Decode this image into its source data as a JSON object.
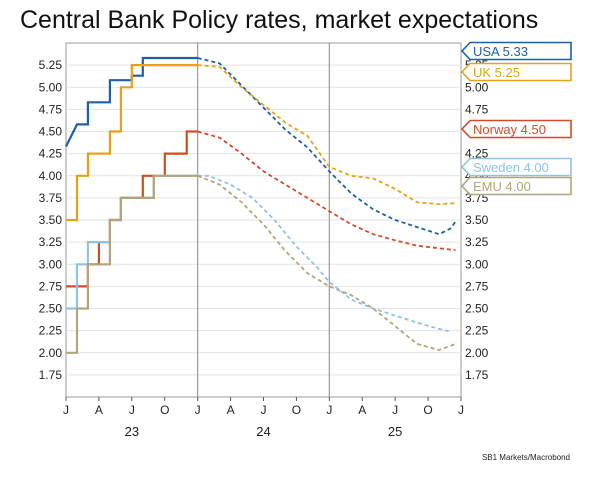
{
  "chart_data": {
    "type": "line",
    "title": "Central Bank Policy rates, market expectations",
    "source": "SB1 Markets/Macrobond",
    "ylim": [
      1.5,
      5.5
    ],
    "y_ticks": [
      "1.75",
      "2.00",
      "2.25",
      "2.50",
      "2.75",
      "3.00",
      "3.25",
      "3.50",
      "3.75",
      "4.00",
      "4.25",
      "4.50",
      "4.75",
      "5.00",
      "5.25"
    ],
    "x_month_ticks": [
      "J",
      "A",
      "J",
      "O",
      "J",
      "A",
      "J",
      "O",
      "J",
      "A",
      "J",
      "O",
      "J"
    ],
    "x_year_labels": [
      "23",
      "24",
      "25"
    ],
    "grid": true,
    "legend": "right-side labels",
    "series": [
      {
        "name": "USA",
        "label": "USA 5.33",
        "color": "#1f5fa6",
        "history": [
          [
            0,
            4.33
          ],
          [
            1,
            4.58
          ],
          [
            2,
            4.58
          ],
          [
            2,
            4.83
          ],
          [
            4,
            4.83
          ],
          [
            4,
            5.08
          ],
          [
            6,
            5.08
          ],
          [
            6,
            5.13
          ],
          [
            7,
            5.13
          ],
          [
            7,
            5.33
          ],
          [
            12,
            5.33
          ]
        ],
        "expectations": [
          [
            12,
            5.33
          ],
          [
            14,
            5.27
          ],
          [
            16,
            5.02
          ],
          [
            18,
            4.77
          ],
          [
            20,
            4.52
          ],
          [
            22,
            4.32
          ],
          [
            24,
            4.05
          ],
          [
            26,
            3.8
          ],
          [
            28,
            3.62
          ],
          [
            30,
            3.5
          ],
          [
            32,
            3.42
          ],
          [
            34,
            3.34
          ],
          [
            35,
            3.4
          ],
          [
            35.5,
            3.48
          ]
        ]
      },
      {
        "name": "UK",
        "label": "UK 5.25",
        "color": "#e3a21a",
        "history": [
          [
            0,
            3.5
          ],
          [
            1,
            3.5
          ],
          [
            1,
            4.0
          ],
          [
            2,
            4.0
          ],
          [
            2,
            4.25
          ],
          [
            4,
            4.25
          ],
          [
            4,
            4.5
          ],
          [
            5,
            4.5
          ],
          [
            5,
            5.0
          ],
          [
            6,
            5.0
          ],
          [
            6,
            5.25
          ],
          [
            12,
            5.25
          ]
        ],
        "expectations": [
          [
            12,
            5.25
          ],
          [
            14,
            5.23
          ],
          [
            16,
            5.0
          ],
          [
            18,
            4.8
          ],
          [
            20,
            4.6
          ],
          [
            22,
            4.45
          ],
          [
            24,
            4.1
          ],
          [
            26,
            4.0
          ],
          [
            28,
            3.97
          ],
          [
            30,
            3.85
          ],
          [
            32,
            3.7
          ],
          [
            34,
            3.68
          ],
          [
            35.5,
            3.69
          ]
        ]
      },
      {
        "name": "Norway",
        "label": "Norway 4.50",
        "color": "#d34b26",
        "history": [
          [
            0,
            2.75
          ],
          [
            2,
            2.75
          ],
          [
            2,
            3.0
          ],
          [
            3,
            3.0
          ],
          [
            3,
            3.25
          ],
          [
            4,
            3.25
          ],
          [
            4,
            3.5
          ],
          [
            5,
            3.5
          ],
          [
            5,
            3.75
          ],
          [
            7,
            3.75
          ],
          [
            7,
            4.0
          ],
          [
            9,
            4.0
          ],
          [
            9,
            4.25
          ],
          [
            11,
            4.25
          ],
          [
            11,
            4.5
          ],
          [
            12,
            4.5
          ]
        ],
        "expectations": [
          [
            12,
            4.5
          ],
          [
            14,
            4.43
          ],
          [
            16,
            4.25
          ],
          [
            18,
            4.05
          ],
          [
            20,
            3.9
          ],
          [
            22,
            3.75
          ],
          [
            24,
            3.6
          ],
          [
            26,
            3.45
          ],
          [
            28,
            3.34
          ],
          [
            30,
            3.27
          ],
          [
            32,
            3.21
          ],
          [
            34,
            3.18
          ],
          [
            35.5,
            3.16
          ]
        ]
      },
      {
        "name": "Sweden",
        "label": "Sweden 4.00",
        "color": "#8dc3e3",
        "history": [
          [
            0,
            2.5
          ],
          [
            1,
            2.5
          ],
          [
            1,
            3.0
          ],
          [
            2,
            3.0
          ],
          [
            2,
            3.25
          ],
          [
            4,
            3.25
          ],
          [
            4,
            3.5
          ],
          [
            5,
            3.5
          ],
          [
            5,
            3.75
          ],
          [
            8,
            3.75
          ],
          [
            8,
            4.0
          ],
          [
            12,
            4.0
          ]
        ],
        "expectations": [
          [
            12,
            4.0
          ],
          [
            13,
            4.0
          ],
          [
            15,
            3.9
          ],
          [
            17,
            3.75
          ],
          [
            19,
            3.5
          ],
          [
            21,
            3.2
          ],
          [
            23,
            2.95
          ],
          [
            24,
            2.8
          ],
          [
            26,
            2.6
          ],
          [
            28,
            2.5
          ],
          [
            30,
            2.42
          ],
          [
            32,
            2.34
          ],
          [
            34,
            2.27
          ],
          [
            35,
            2.24
          ]
        ]
      },
      {
        "name": "EMU",
        "label": "EMU 4.00",
        "color": "#b3a47a",
        "history": [
          [
            0,
            2.0
          ],
          [
            1,
            2.0
          ],
          [
            1,
            2.5
          ],
          [
            2,
            2.5
          ],
          [
            2,
            3.0
          ],
          [
            4,
            3.0
          ],
          [
            4,
            3.5
          ],
          [
            5,
            3.5
          ],
          [
            5,
            3.75
          ],
          [
            8,
            3.75
          ],
          [
            8,
            4.0
          ],
          [
            12,
            4.0
          ]
        ],
        "expectations": [
          [
            12,
            4.0
          ],
          [
            14,
            3.9
          ],
          [
            16,
            3.7
          ],
          [
            18,
            3.45
          ],
          [
            20,
            3.15
          ],
          [
            22,
            2.9
          ],
          [
            24,
            2.75
          ],
          [
            26,
            2.65
          ],
          [
            28,
            2.5
          ],
          [
            30,
            2.3
          ],
          [
            32,
            2.1
          ],
          [
            34,
            2.03
          ],
          [
            35.5,
            2.1
          ]
        ]
      }
    ]
  }
}
